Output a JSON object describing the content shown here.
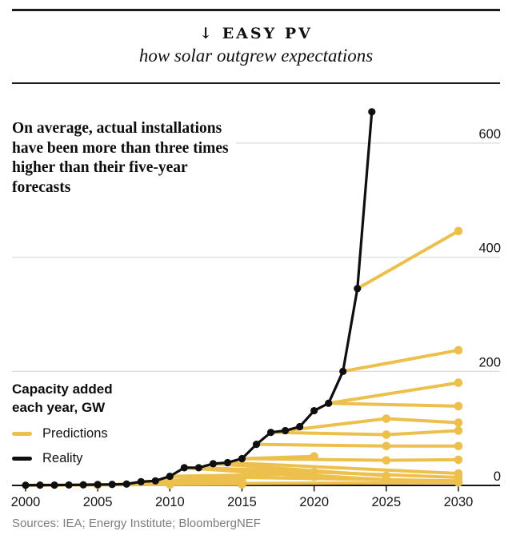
{
  "header": {
    "title": "↓ EASY PV",
    "subtitle": "how solar outgrew expectations"
  },
  "colors": {
    "prediction_yellow": "#EDC04D",
    "reality_black": "#0F0F0F",
    "grid_gray": "#DBDBDB",
    "axis_black": "#141414",
    "label_dark": "#161616",
    "source_gray": "#7D7D7D",
    "background": "#FFFFFF"
  },
  "legend": {
    "title": "Capacity added each year, GW",
    "items": [
      {
        "label": "Predictions",
        "color": "#EDC04D"
      },
      {
        "label": "Reality",
        "color": "#0F0F0F"
      }
    ]
  },
  "footer": {
    "source": "Sources: IEA; Energy Institute; BloombergNEF"
  },
  "chart_data": {
    "type": "line",
    "title": "↓ EASY PV",
    "subtitle": "how solar outgrew expectations",
    "annotation": "On average, actual installations have been more than three times higher than their five-year forecasts",
    "unit_label": "Capacity added each year, GW",
    "xlim": [
      2000,
      2033
    ],
    "ylim": [
      0,
      680
    ],
    "grid": "horizontal",
    "legend_position": "left",
    "x_ticks": [
      {
        "value": 2000,
        "label": "2000"
      },
      {
        "value": 2005,
        "label": "2005"
      },
      {
        "value": 2010,
        "label": "2010"
      },
      {
        "value": 2015,
        "label": "2015"
      },
      {
        "value": 2020,
        "label": "2020"
      },
      {
        "value": 2025,
        "label": "2025"
      },
      {
        "value": 2030,
        "label": "2030"
      }
    ],
    "y_ticks": [
      {
        "value": 0,
        "label": "0"
      },
      {
        "value": 200,
        "label": "200"
      },
      {
        "value": 400,
        "label": "400"
      },
      {
        "value": 600,
        "label": "600"
      }
    ],
    "series": [
      {
        "name": "Reality",
        "color": "#0F0F0F",
        "x": [
          2000,
          2001,
          2002,
          2003,
          2004,
          2005,
          2006,
          2007,
          2008,
          2009,
          2010,
          2011,
          2012,
          2013,
          2014,
          2015,
          2016,
          2017,
          2018,
          2019,
          2020,
          2021,
          2022,
          2023,
          2024
        ],
        "y": [
          0.4,
          0.5,
          0.6,
          0.8,
          1.1,
          1.4,
          1.7,
          2.5,
          6.5,
          8,
          16,
          31,
          31,
          38,
          40,
          47,
          72,
          93,
          96,
          103,
          131,
          144,
          200,
          345,
          655
        ]
      }
    ],
    "predictions": {
      "name": "Predictions",
      "color": "#EDC04D",
      "lines": [
        [
          [
            2023,
            345
          ],
          [
            2030,
            446
          ]
        ],
        [
          [
            2022,
            200
          ],
          [
            2030,
            237
          ]
        ],
        [
          [
            2021,
            144
          ],
          [
            2030,
            180
          ]
        ],
        [
          [
            2021,
            144
          ],
          [
            2030,
            139
          ]
        ],
        [
          [
            2018,
            96
          ],
          [
            2025,
            117
          ],
          [
            2030,
            110
          ]
        ],
        [
          [
            2017,
            93
          ],
          [
            2025,
            89
          ],
          [
            2030,
            96
          ]
        ],
        [
          [
            2016,
            72
          ],
          [
            2025,
            69
          ],
          [
            2030,
            69
          ]
        ],
        [
          [
            2015,
            47
          ],
          [
            2025,
            44
          ],
          [
            2030,
            45
          ]
        ],
        [
          [
            2015,
            47
          ],
          [
            2020,
            51
          ]
        ],
        [
          [
            2014,
            40
          ],
          [
            2030,
            21
          ]
        ],
        [
          [
            2013,
            38
          ],
          [
            2025,
            17
          ]
        ],
        [
          [
            2012,
            31
          ],
          [
            2030,
            14
          ]
        ],
        [
          [
            2012,
            31
          ],
          [
            2020,
            23
          ]
        ],
        [
          [
            2011,
            31
          ],
          [
            2020,
            15
          ]
        ],
        [
          [
            2011,
            31
          ],
          [
            2025,
            10
          ]
        ],
        [
          [
            2010,
            16
          ],
          [
            2020,
            20
          ]
        ],
        [
          [
            2010,
            16
          ],
          [
            2030,
            8
          ]
        ],
        [
          [
            2009,
            8
          ],
          [
            2015,
            14
          ]
        ],
        [
          [
            2008,
            6.5
          ],
          [
            2015,
            9
          ]
        ],
        [
          [
            2007,
            2.5
          ],
          [
            2015,
            5
          ]
        ],
        [
          [
            2007,
            2.5
          ],
          [
            2030,
            5
          ]
        ],
        [
          [
            2006,
            1.7
          ],
          [
            2015,
            3.5
          ]
        ],
        [
          [
            2004,
            1.1
          ],
          [
            2015,
            2
          ]
        ],
        [
          [
            2002,
            0.6
          ],
          [
            2010,
            1.5
          ]
        ],
        [
          [
            2000,
            0.4
          ],
          [
            2005,
            1
          ]
        ]
      ]
    }
  }
}
